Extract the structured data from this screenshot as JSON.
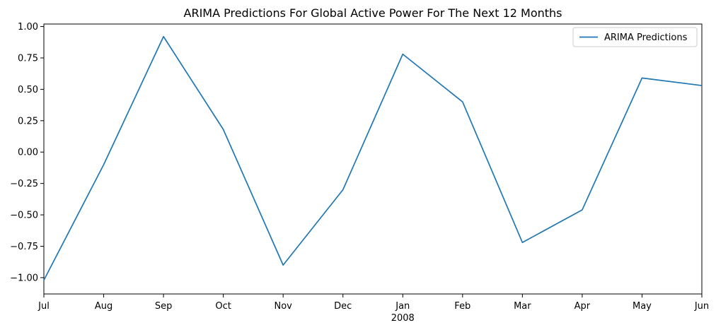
{
  "chart_data": {
    "type": "line",
    "title": "ARIMA Predictions For Global Active Power For The Next 12 Months",
    "xlabel": "",
    "ylabel": "",
    "categories": [
      "Jul",
      "Aug",
      "Sep",
      "Oct",
      "Nov",
      "Dec",
      "Jan",
      "Feb",
      "Mar",
      "Apr",
      "May",
      "Jun"
    ],
    "x_sublabel": {
      "category": "Jan",
      "text": "2008"
    },
    "ylim": [
      -1.13,
      1.02
    ],
    "yticks": [
      1.0,
      0.75,
      0.5,
      0.25,
      0.0,
      -0.25,
      -0.5,
      -0.75,
      -1.0
    ],
    "ytick_labels": [
      "1.00",
      "0.75",
      "0.50",
      "0.25",
      "0.00",
      "−0.25",
      "−0.50",
      "−0.75",
      "−1.00"
    ],
    "series": [
      {
        "name": "ARIMA Predictions",
        "color": "#1f77b4",
        "values": [
          -1.02,
          -0.1,
          0.92,
          0.18,
          -0.9,
          -0.3,
          0.78,
          0.4,
          -0.72,
          -0.46,
          0.59,
          0.53
        ]
      }
    ],
    "legend": {
      "position": "top-right"
    },
    "grid": false
  }
}
